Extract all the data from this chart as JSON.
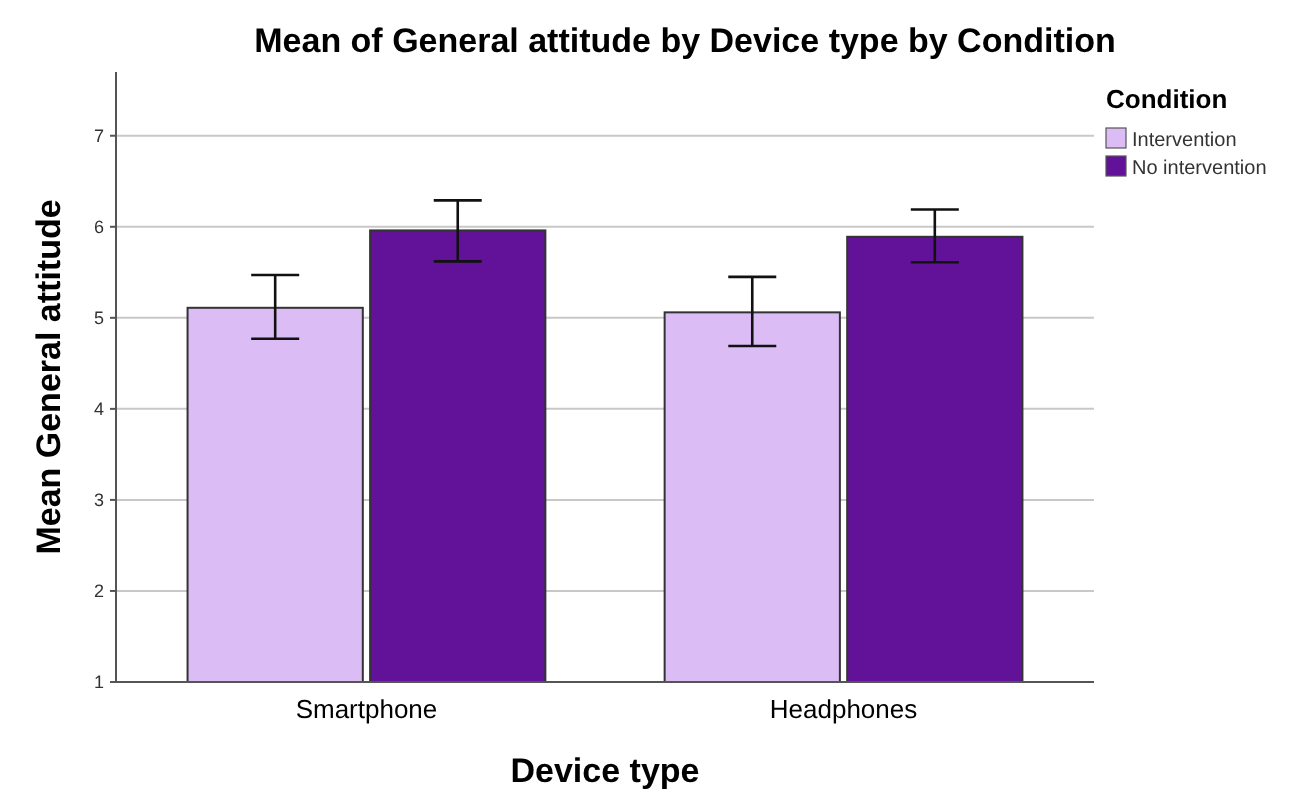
{
  "chart_data": {
    "type": "bar",
    "title": "Mean of General attitude by Device type by Condition",
    "xlabel": "Device type",
    "ylabel": "Mean General attitude",
    "legend_title": "Condition",
    "categories": [
      "Smartphone",
      "Headphones"
    ],
    "series": [
      {
        "name": "Intervention",
        "color": "#dcbcf5",
        "values": [
          5.11,
          5.06
        ],
        "errors": [
          [
            4.77,
            5.47
          ],
          [
            4.69,
            5.45
          ]
        ]
      },
      {
        "name": "No intervention",
        "color": "#621299",
        "values": [
          5.96,
          5.89
        ],
        "errors": [
          [
            5.62,
            6.29
          ],
          [
            5.61,
            6.19
          ]
        ]
      }
    ],
    "ylim": [
      1,
      7.7
    ],
    "yticks": [
      1,
      2,
      3,
      4,
      5,
      6,
      7
    ],
    "grid": "y",
    "legend": "top right"
  }
}
